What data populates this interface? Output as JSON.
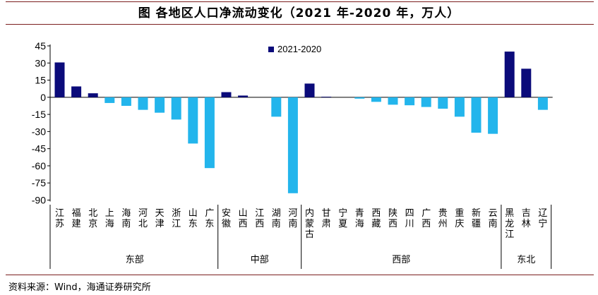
{
  "title": "图  各地区人口净流动变化（2021 年-2020 年，万人）",
  "source": "资料来源：Wind，海通证券研究所",
  "colors": {
    "rule": "#7b1e1e",
    "positive": "#0b0b7a",
    "negative": "#23b5ec"
  },
  "chart_data": {
    "type": "bar",
    "legend": {
      "label": "2021-2020",
      "position": "top-center"
    },
    "ylim": [
      -90,
      45
    ],
    "yticks": [
      45,
      30,
      15,
      0,
      -15,
      -30,
      -45,
      -60,
      -75,
      -90
    ],
    "categories": [
      "江苏",
      "福建",
      "北京",
      "上海",
      "海南",
      "河北",
      "天津",
      "浙江",
      "山东",
      "广东",
      "安徽",
      "山西",
      "江西",
      "湖南",
      "河南",
      "内蒙古",
      "甘肃",
      "宁夏",
      "青海",
      "西藏",
      "陕西",
      "四川",
      "广西",
      "贵州",
      "重庆",
      "新疆",
      "云南",
      "黑龙江",
      "吉林",
      "辽宁"
    ],
    "series": [
      {
        "name": "2021-2020",
        "values": [
          30.5,
          9.5,
          3.5,
          -5,
          -7.5,
          -11,
          -13.5,
          -19.5,
          -40.5,
          -62,
          4.5,
          1.5,
          0,
          -17,
          -84,
          12,
          0.5,
          0,
          -1.2,
          -4,
          -6.5,
          -7,
          -8.5,
          -10,
          -17,
          -31,
          -32,
          40,
          25,
          -11
        ]
      }
    ],
    "groups": [
      {
        "label": "东部",
        "start": 0,
        "end": 9
      },
      {
        "label": "中部",
        "start": 10,
        "end": 14
      },
      {
        "label": "西部",
        "start": 15,
        "end": 26
      },
      {
        "label": "东北",
        "start": 27,
        "end": 29
      }
    ]
  }
}
